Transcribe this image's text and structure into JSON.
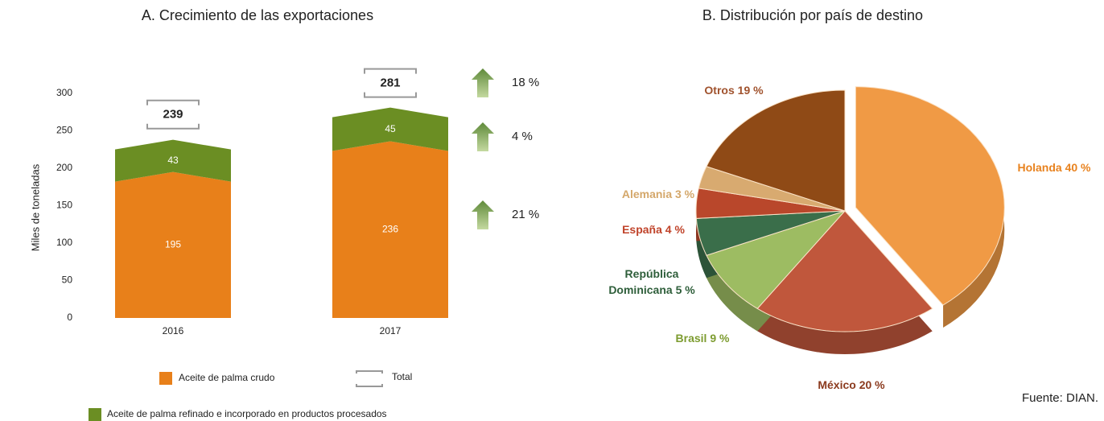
{
  "chart_data": [
    {
      "type": "bar",
      "title": "A. Crecimiento de las exportaciones",
      "y_label": "Miles de toneladas",
      "categories": [
        "2016",
        "2017"
      ],
      "series": [
        {
          "name": "Aceite de palma crudo",
          "color": "#e8801a",
          "values": [
            195,
            236
          ]
        },
        {
          "name": "Aceite de palma refinado e incorporado en productos procesados",
          "color": "#6b8e23",
          "values": [
            43,
            45
          ]
        }
      ],
      "totals": {
        "name": "Total",
        "values": [
          239,
          281
        ]
      },
      "growth": {
        "values": [
          18,
          4,
          21
        ],
        "value_labels": [
          "18 %",
          "4 %",
          "21 %"
        ]
      },
      "ylim": [
        0,
        300
      ],
      "yticks": [
        0,
        50,
        100,
        150,
        200,
        250,
        300
      ],
      "stacked": true
    },
    {
      "type": "pie",
      "title": "B. Distribución por país de destino",
      "categories": [
        "Holanda",
        "México",
        "Brasil",
        "República Dominicana",
        "España",
        "Alemania",
        "Otros"
      ],
      "values": [
        40,
        20,
        9,
        5,
        4,
        3,
        19
      ],
      "value_labels": [
        "40 %",
        "20 %",
        "9 %",
        "5 %",
        "4 %",
        "3 %",
        "19 %"
      ],
      "colors": [
        "#f09a45",
        "#c0573c",
        "#9dbc62",
        "#3a6e4a",
        "#b9472b",
        "#d8aa70",
        "#8f4a16"
      ],
      "label_colors": [
        "#e8821e",
        "#8b3a1e",
        "#7d9c30",
        "#2e5e3a",
        "#c0432a",
        "#d4a76a",
        "#a0522d"
      ],
      "source": "Fuente: DIAN."
    }
  ]
}
